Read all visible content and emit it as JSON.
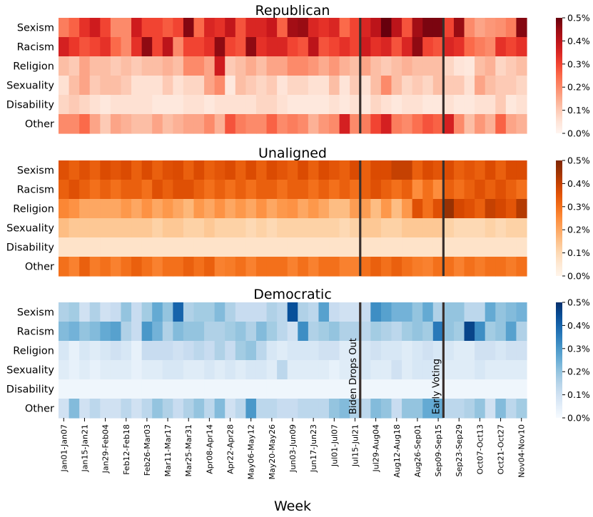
{
  "chart_data": {
    "type": "heatmap",
    "xlabel": "Week",
    "categories": [
      "Sexism",
      "Racism",
      "Religion",
      "Sexuality",
      "Disability",
      "Other"
    ],
    "x_tick_labels": [
      "Jan01-Jan07",
      "Jan15-Jan21",
      "Jan29-Feb04",
      "Feb12-Feb18",
      "Feb26-Mar03",
      "Mar11-Mar17",
      "Mar25-Mar31",
      "Apr08-Apr14",
      "Apr22-Apr28",
      "May06-May12",
      "May20-May26",
      "Jun03-Jun09",
      "Jun17-Jun23",
      "Jul01-Jul07",
      "Jul15-Jul21",
      "Jul29-Aug04",
      "Aug12-Aug18",
      "Aug26-Sep01",
      "Sep09-Sep15",
      "Sep23-Sep29",
      "Oct07-Oct13",
      "Oct21-Oct27",
      "Nov04-Nov10"
    ],
    "num_weeks": 45,
    "colorbar_ticks": [
      "0.0%",
      "0.1%",
      "0.2%",
      "0.3%",
      "0.4%",
      "0.5%"
    ],
    "colorbar_range": [
      0,
      0.5
    ],
    "events": [
      {
        "label": "Biden Drops Out",
        "week_index": 29
      },
      {
        "label": "Early Voting",
        "week_index": 37
      }
    ],
    "panels": [
      {
        "title": "Republican",
        "colormap": "Reds",
        "rows": {
          "Sexism": [
            0.22,
            0.26,
            0.33,
            0.37,
            0.3,
            0.2,
            0.2,
            0.37,
            0.3,
            0.3,
            0.27,
            0.3,
            0.47,
            0.25,
            0.35,
            0.33,
            0.39,
            0.28,
            0.35,
            0.35,
            0.38,
            0.26,
            0.44,
            0.45,
            0.35,
            0.33,
            0.35,
            0.25,
            0.3,
            0.35,
            0.4,
            0.5,
            0.4,
            0.28,
            0.44,
            0.48,
            0.48,
            0.3,
            0.45,
            0.2,
            0.16,
            0.18,
            0.19,
            0.22,
            0.47
          ],
          "Racism": [
            0.36,
            0.32,
            0.28,
            0.3,
            0.33,
            0.25,
            0.2,
            0.33,
            0.46,
            0.3,
            0.4,
            0.2,
            0.3,
            0.3,
            0.33,
            0.46,
            0.3,
            0.28,
            0.46,
            0.33,
            0.35,
            0.35,
            0.3,
            0.28,
            0.4,
            0.28,
            0.3,
            0.33,
            0.3,
            0.37,
            0.33,
            0.35,
            0.28,
            0.35,
            0.46,
            0.3,
            0.28,
            0.35,
            0.33,
            0.25,
            0.22,
            0.2,
            0.33,
            0.3,
            0.33
          ],
          "Religion": [
            0.12,
            0.1,
            0.16,
            0.12,
            0.12,
            0.1,
            0.12,
            0.1,
            0.12,
            0.12,
            0.14,
            0.12,
            0.2,
            0.2,
            0.16,
            0.37,
            0.1,
            0.12,
            0.15,
            0.12,
            0.16,
            0.16,
            0.2,
            0.2,
            0.18,
            0.15,
            0.18,
            0.14,
            0.12,
            0.16,
            0.12,
            0.1,
            0.12,
            0.14,
            0.12,
            0.12,
            0.12,
            0.08,
            0.05,
            0.04,
            0.12,
            0.14,
            0.08,
            0.1,
            0.12
          ],
          "Sexuality": [
            0.06,
            0.12,
            0.16,
            0.1,
            0.12,
            0.12,
            0.1,
            0.06,
            0.06,
            0.06,
            0.1,
            0.06,
            0.08,
            0.08,
            0.16,
            0.2,
            0.04,
            0.12,
            0.1,
            0.08,
            0.1,
            0.05,
            0.08,
            0.08,
            0.06,
            0.06,
            0.12,
            0.05,
            0.1,
            0.06,
            0.12,
            0.2,
            0.12,
            0.08,
            0.1,
            0.08,
            0.12,
            0.1,
            0.1,
            0.06,
            0.16,
            0.12,
            0.1,
            0.1,
            0.08
          ],
          "Disability": [
            0.08,
            0.1,
            0.08,
            0.06,
            0.04,
            0.06,
            0.06,
            0.06,
            0.06,
            0.04,
            0.04,
            0.04,
            0.06,
            0.06,
            0.04,
            0.06,
            0.06,
            0.06,
            0.06,
            0.08,
            0.08,
            0.06,
            0.04,
            0.04,
            0.04,
            0.04,
            0.06,
            0.04,
            0.06,
            0.04,
            0.08,
            0.06,
            0.04,
            0.06,
            0.06,
            0.04,
            0.04,
            0.06,
            0.04,
            0.04,
            0.06,
            0.06,
            0.1,
            0.04,
            0.06
          ],
          "Other": [
            0.2,
            0.2,
            0.25,
            0.16,
            0.1,
            0.16,
            0.14,
            0.12,
            0.12,
            0.16,
            0.12,
            0.14,
            0.16,
            0.16,
            0.2,
            0.14,
            0.28,
            0.22,
            0.2,
            0.2,
            0.26,
            0.2,
            0.22,
            0.2,
            0.14,
            0.18,
            0.2,
            0.36,
            0.2,
            0.22,
            0.3,
            0.36,
            0.22,
            0.2,
            0.24,
            0.28,
            0.26,
            0.36,
            0.2,
            0.12,
            0.18,
            0.14,
            0.26,
            0.16,
            0.14
          ]
        }
      },
      {
        "title": "Unaligned",
        "colormap": "Oranges",
        "rows": {
          "Sexism": [
            0.36,
            0.33,
            0.36,
            0.33,
            0.37,
            0.35,
            0.37,
            0.33,
            0.37,
            0.33,
            0.36,
            0.37,
            0.33,
            0.37,
            0.33,
            0.35,
            0.37,
            0.33,
            0.37,
            0.33,
            0.37,
            0.35,
            0.33,
            0.37,
            0.33,
            0.37,
            0.35,
            0.33,
            0.37,
            0.33,
            0.37,
            0.37,
            0.4,
            0.4,
            0.33,
            0.37,
            0.35,
            0.37,
            0.33,
            0.35,
            0.33,
            0.37,
            0.33,
            0.37,
            0.37
          ],
          "Racism": [
            0.33,
            0.36,
            0.33,
            0.3,
            0.33,
            0.3,
            0.33,
            0.33,
            0.3,
            0.36,
            0.33,
            0.36,
            0.36,
            0.33,
            0.3,
            0.33,
            0.3,
            0.33,
            0.3,
            0.33,
            0.33,
            0.3,
            0.33,
            0.33,
            0.3,
            0.33,
            0.3,
            0.33,
            0.3,
            0.33,
            0.36,
            0.33,
            0.3,
            0.33,
            0.25,
            0.3,
            0.25,
            0.33,
            0.3,
            0.33,
            0.36,
            0.33,
            0.36,
            0.33,
            0.3
          ],
          "Religion": [
            0.26,
            0.24,
            0.2,
            0.2,
            0.2,
            0.2,
            0.23,
            0.2,
            0.24,
            0.2,
            0.23,
            0.2,
            0.17,
            0.23,
            0.2,
            0.24,
            0.2,
            0.23,
            0.2,
            0.24,
            0.2,
            0.23,
            0.24,
            0.2,
            0.23,
            0.2,
            0.16,
            0.16,
            0.22,
            0.22,
            0.16,
            0.23,
            0.16,
            0.23,
            0.36,
            0.3,
            0.36,
            0.46,
            0.38,
            0.36,
            0.33,
            0.4,
            0.38,
            0.35,
            0.42
          ],
          "Sexuality": [
            0.16,
            0.14,
            0.14,
            0.14,
            0.14,
            0.14,
            0.14,
            0.14,
            0.14,
            0.12,
            0.14,
            0.14,
            0.12,
            0.12,
            0.14,
            0.12,
            0.12,
            0.12,
            0.1,
            0.12,
            0.1,
            0.12,
            0.12,
            0.12,
            0.12,
            0.12,
            0.12,
            0.1,
            0.12,
            0.14,
            0.14,
            0.12,
            0.12,
            0.14,
            0.14,
            0.14,
            0.14,
            0.12,
            0.1,
            0.1,
            0.1,
            0.12,
            0.1,
            0.12,
            0.12
          ],
          "Disability": [
            0.07,
            0.07,
            0.07,
            0.07,
            0.07,
            0.07,
            0.07,
            0.07,
            0.07,
            0.07,
            0.07,
            0.07,
            0.07,
            0.07,
            0.07,
            0.07,
            0.07,
            0.07,
            0.07,
            0.07,
            0.07,
            0.07,
            0.07,
            0.07,
            0.07,
            0.07,
            0.07,
            0.07,
            0.07,
            0.07,
            0.07,
            0.07,
            0.07,
            0.07,
            0.07,
            0.07,
            0.07,
            0.07,
            0.07,
            0.07,
            0.07,
            0.07,
            0.07,
            0.07,
            0.07
          ],
          "Other": [
            0.3,
            0.27,
            0.33,
            0.28,
            0.3,
            0.27,
            0.3,
            0.33,
            0.3,
            0.27,
            0.3,
            0.3,
            0.33,
            0.3,
            0.33,
            0.27,
            0.28,
            0.3,
            0.27,
            0.3,
            0.3,
            0.3,
            0.27,
            0.3,
            0.27,
            0.3,
            0.3,
            0.27,
            0.27,
            0.3,
            0.33,
            0.3,
            0.33,
            0.3,
            0.28,
            0.27,
            0.3,
            0.3,
            0.27,
            0.3,
            0.28,
            0.3,
            0.3,
            0.28,
            0.3
          ]
        }
      },
      {
        "title": "Democratic",
        "colormap": "Blues",
        "rows": {
          "Sexism": [
            0.16,
            0.18,
            0.1,
            0.16,
            0.1,
            0.12,
            0.2,
            0.12,
            0.18,
            0.26,
            0.2,
            0.4,
            0.16,
            0.18,
            0.18,
            0.22,
            0.16,
            0.12,
            0.12,
            0.12,
            0.16,
            0.14,
            0.44,
            0.16,
            0.14,
            0.28,
            0.12,
            0.1,
            0.1,
            0.12,
            0.32,
            0.28,
            0.24,
            0.24,
            0.2,
            0.26,
            0.16,
            0.2,
            0.2,
            0.14,
            0.14,
            0.26,
            0.2,
            0.22,
            0.24
          ],
          "Racism": [
            0.22,
            0.24,
            0.2,
            0.22,
            0.26,
            0.28,
            0.16,
            0.12,
            0.3,
            0.24,
            0.16,
            0.22,
            0.2,
            0.2,
            0.16,
            0.16,
            0.18,
            0.2,
            0.16,
            0.22,
            0.18,
            0.14,
            0.1,
            0.32,
            0.16,
            0.18,
            0.2,
            0.16,
            0.16,
            0.14,
            0.18,
            0.16,
            0.14,
            0.18,
            0.2,
            0.18,
            0.36,
            0.2,
            0.18,
            0.46,
            0.32,
            0.18,
            0.2,
            0.28,
            0.16
          ],
          "Religion": [
            0.08,
            0.04,
            0.08,
            0.06,
            0.08,
            0.1,
            0.08,
            0.04,
            0.12,
            0.12,
            0.12,
            0.1,
            0.12,
            0.14,
            0.12,
            0.16,
            0.12,
            0.18,
            0.2,
            0.14,
            0.08,
            0.06,
            0.08,
            0.08,
            0.08,
            0.1,
            0.1,
            0.06,
            0.06,
            0.08,
            0.1,
            0.08,
            0.08,
            0.06,
            0.08,
            0.1,
            0.08,
            0.08,
            0.06,
            0.06,
            0.1,
            0.1,
            0.08,
            0.1,
            0.1
          ],
          "Sexuality": [
            0.06,
            0.04,
            0.06,
            0.04,
            0.06,
            0.06,
            0.06,
            0.04,
            0.06,
            0.06,
            0.08,
            0.08,
            0.06,
            0.06,
            0.08,
            0.06,
            0.08,
            0.06,
            0.08,
            0.08,
            0.06,
            0.14,
            0.06,
            0.06,
            0.06,
            0.06,
            0.04,
            0.06,
            0.06,
            0.08,
            0.06,
            0.06,
            0.1,
            0.06,
            0.08,
            0.08,
            0.06,
            0.06,
            0.06,
            0.06,
            0.08,
            0.06,
            0.06,
            0.06,
            0.06
          ],
          "Disability": [
            0.02,
            0.02,
            0.02,
            0.02,
            0.02,
            0.02,
            0.02,
            0.02,
            0.02,
            0.02,
            0.02,
            0.02,
            0.02,
            0.02,
            0.02,
            0.02,
            0.02,
            0.02,
            0.02,
            0.02,
            0.02,
            0.02,
            0.02,
            0.02,
            0.02,
            0.02,
            0.02,
            0.02,
            0.02,
            0.02,
            0.02,
            0.02,
            0.02,
            0.02,
            0.02,
            0.02,
            0.02,
            0.02,
            0.02,
            0.02,
            0.02,
            0.02,
            0.02,
            0.02,
            0.02
          ],
          "Other": [
            0.1,
            0.22,
            0.1,
            0.14,
            0.1,
            0.1,
            0.14,
            0.1,
            0.14,
            0.2,
            0.16,
            0.12,
            0.16,
            0.2,
            0.14,
            0.22,
            0.1,
            0.14,
            0.3,
            0.14,
            0.14,
            0.12,
            0.12,
            0.14,
            0.14,
            0.14,
            0.2,
            0.22,
            0.16,
            0.14,
            0.22,
            0.2,
            0.12,
            0.2,
            0.2,
            0.26,
            0.26,
            0.14,
            0.14,
            0.16,
            0.2,
            0.1,
            0.22,
            0.14,
            0.18
          ]
        }
      }
    ]
  }
}
